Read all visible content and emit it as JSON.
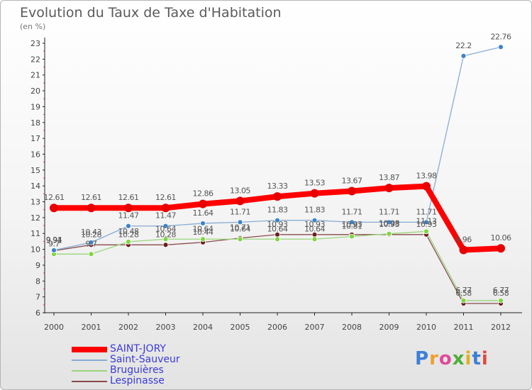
{
  "title": "Evolution du Taux de Taxe d'Habitation",
  "subtitle": "(en %)",
  "logo": {
    "text": "Proxiti",
    "letters": [
      {
        "ch": "P",
        "color": "#3d7fd6"
      },
      {
        "ch": "r",
        "color": "#f0a030"
      },
      {
        "ch": "o",
        "color": "#e04a9a"
      },
      {
        "ch": "x",
        "color": "#4fae3a"
      },
      {
        "ch": "i",
        "color": "#e0b020"
      },
      {
        "ch": "t",
        "color": "#3d7fd6"
      },
      {
        "ch": "i",
        "color": "#e04a3a"
      }
    ]
  },
  "chart_data": {
    "type": "line",
    "title": "Evolution du Taux de Taxe d'Habitation",
    "ylabel": "(en %)",
    "xlabel": "",
    "categories": [
      "2000",
      "2001",
      "2002",
      "2003",
      "2004",
      "2005",
      "2006",
      "2007",
      "2008",
      "2009",
      "2010",
      "2011",
      "2012"
    ],
    "ylim": [
      6,
      23
    ],
    "yticks": [
      6,
      7,
      8,
      9,
      10,
      11,
      12,
      13,
      14,
      15,
      16,
      17,
      18,
      19,
      20,
      21,
      22,
      23
    ],
    "grid": false,
    "legend_position": "bottom-left",
    "series": [
      {
        "name": "SAINT-JORY",
        "color": "#ff0000",
        "marker_color": "#e80000",
        "width": 8,
        "radius": 6,
        "values": [
          12.61,
          12.61,
          12.61,
          12.61,
          12.86,
          13.05,
          13.33,
          13.53,
          13.67,
          13.87,
          13.98,
          9.96,
          10.06
        ],
        "labels": [
          "12.61",
          "12.61",
          "12.61",
          "12.61",
          "12.86",
          "13.05",
          "13.33",
          "13.53",
          "13.67",
          "13.87",
          "13.98",
          "9.96",
          "10.06"
        ]
      },
      {
        "name": "Saint-Sauveur",
        "color": "#87acd4",
        "marker_color": "#3c84c8",
        "width": 1.3,
        "radius": 3.5,
        "values": [
          9.94,
          10.43,
          11.47,
          11.47,
          11.64,
          11.71,
          11.83,
          11.83,
          11.71,
          11.71,
          11.71,
          22.2,
          22.76
        ],
        "labels": [
          "9.94",
          "10.43",
          "11.47",
          "11.47",
          "11.64",
          "11.71",
          "11.83",
          "11.83",
          "11.71",
          "11.71",
          "11.71",
          "22.2",
          "22.76"
        ]
      },
      {
        "name": "Bruguières",
        "color": "#9ad67c",
        "marker_color": "#7fd640",
        "width": 1.3,
        "radius": 3.5,
        "values": [
          9.7,
          9.7,
          10.48,
          10.64,
          10.64,
          10.64,
          10.64,
          10.64,
          10.81,
          10.98,
          11.13,
          6.77,
          6.77
        ],
        "labels": [
          "9.7",
          "9.7",
          "10.48",
          "10.64",
          "10.64",
          "10.64",
          "10.64",
          "10.64",
          "10.81",
          "10.98",
          "11.13",
          "6.77",
          "6.77"
        ]
      },
      {
        "name": "Lespinasse",
        "color": "#8a4a4a",
        "marker_color": "#6a1f1f",
        "width": 1.3,
        "radius": 3.5,
        "values": [
          9.91,
          10.28,
          10.28,
          10.28,
          10.44,
          10.71,
          10.93,
          10.93,
          10.93,
          10.93,
          10.93,
          6.58,
          6.58
        ],
        "labels": [
          "9.91",
          "10.28",
          "10.28",
          "10.28",
          "10.44",
          "10.71",
          "10.93",
          "10.93",
          "10.93",
          "10.93",
          "10.93",
          "6.58",
          "6.58"
        ]
      }
    ]
  }
}
